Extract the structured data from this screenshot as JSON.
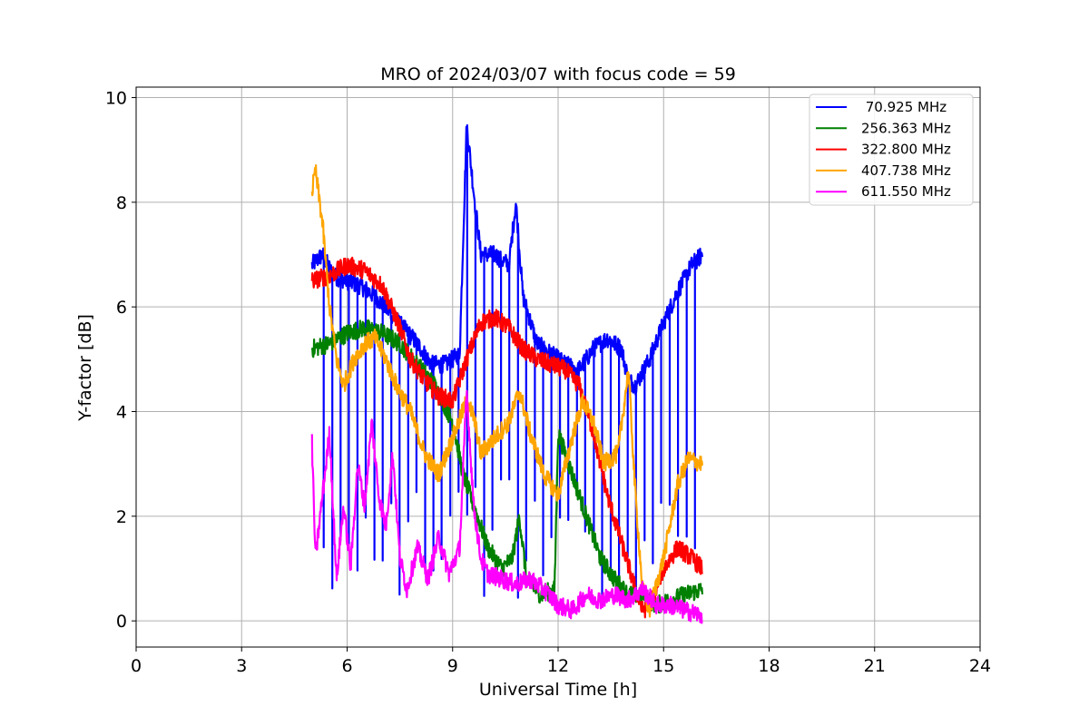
{
  "chart_data": {
    "type": "line",
    "title": "MRO of 2024/03/07 with focus code = 59",
    "xlabel": "Universal Time [h]",
    "ylabel": "Y-factor [dB]",
    "xlim": [
      0,
      24
    ],
    "ylim": [
      -0.5,
      10.2
    ],
    "xticks": [
      0,
      3,
      6,
      9,
      12,
      15,
      18,
      21,
      24
    ],
    "yticks": [
      0,
      2,
      4,
      6,
      8,
      10
    ],
    "grid": true,
    "legend_position": "top-right",
    "series": [
      {
        "name": " 70.925 MHz",
        "color": "#0000ff",
        "x": [
          5.0,
          5.3,
          5.6,
          6.0,
          6.4,
          6.8,
          7.2,
          7.6,
          8.0,
          8.4,
          8.8,
          9.2,
          9.4,
          9.6,
          9.8,
          10.2,
          10.6,
          10.8,
          11.0,
          11.4,
          11.8,
          12.2,
          12.6,
          13.0,
          13.4,
          13.8,
          14.0,
          14.2,
          14.6,
          15.0,
          15.4,
          15.8,
          16.1
        ],
        "y": [
          6.8,
          7.0,
          6.6,
          6.5,
          6.4,
          6.2,
          5.9,
          5.6,
          5.3,
          4.9,
          4.9,
          5.1,
          9.5,
          8.2,
          7.0,
          7.0,
          6.8,
          8.0,
          6.2,
          5.3,
          5.1,
          4.9,
          4.8,
          5.2,
          5.4,
          5.2,
          4.6,
          4.5,
          5.0,
          5.7,
          6.3,
          6.8,
          7.0
        ],
        "dips": {
          "period_h": 0.24,
          "start_h": 5.1,
          "end_h": 16.1,
          "min_db": 0.4
        }
      },
      {
        "name": "256.363 MHz",
        "color": "#008000",
        "x": [
          5.0,
          5.5,
          6.0,
          6.5,
          7.0,
          7.5,
          8.0,
          8.5,
          9.0,
          9.3,
          9.7,
          10.0,
          10.4,
          10.7,
          10.9,
          11.1,
          11.5,
          11.9,
          12.0,
          12.4,
          12.8,
          13.2,
          13.6,
          14.0,
          14.4,
          14.8,
          15.2,
          15.6,
          16.1
        ],
        "y": [
          5.2,
          5.3,
          5.5,
          5.6,
          5.5,
          5.3,
          4.9,
          4.5,
          3.8,
          2.8,
          2.0,
          1.4,
          1.0,
          1.2,
          2.0,
          0.8,
          0.5,
          0.6,
          3.6,
          2.8,
          2.0,
          1.2,
          0.8,
          0.5,
          0.5,
          0.3,
          0.4,
          0.5,
          0.6
        ]
      },
      {
        "name": "322.800 MHz",
        "color": "#ff0000",
        "x": [
          5.0,
          5.5,
          6.0,
          6.5,
          7.0,
          7.5,
          7.8,
          8.2,
          8.6,
          9.0,
          9.4,
          9.8,
          10.2,
          10.6,
          11.0,
          11.4,
          11.8,
          12.2,
          12.6,
          13.0,
          13.4,
          13.8,
          14.2,
          14.4,
          14.6,
          15.0,
          15.4,
          15.8,
          16.1
        ],
        "y": [
          6.5,
          6.6,
          6.8,
          6.7,
          6.4,
          5.6,
          5.0,
          4.6,
          4.3,
          4.2,
          5.0,
          5.7,
          5.8,
          5.6,
          5.2,
          5.0,
          4.9,
          4.8,
          4.5,
          3.6,
          2.4,
          1.5,
          0.6,
          0.2,
          0.3,
          1.0,
          1.4,
          1.2,
          1.0
        ]
      },
      {
        "name": "407.738 MHz",
        "color": "#ffa500",
        "x": [
          5.0,
          5.1,
          5.3,
          5.5,
          5.7,
          5.9,
          6.2,
          6.5,
          6.8,
          7.1,
          7.4,
          7.8,
          8.2,
          8.6,
          9.0,
          9.4,
          9.6,
          9.8,
          10.2,
          10.6,
          10.9,
          11.2,
          11.6,
          12.0,
          12.4,
          12.7,
          13.0,
          13.3,
          13.7,
          14.0,
          14.2,
          14.4,
          14.6,
          15.0,
          15.4,
          15.7,
          16.1
        ],
        "y": [
          8.2,
          8.6,
          7.6,
          6.0,
          5.0,
          4.5,
          5.0,
          5.3,
          5.4,
          5.0,
          4.5,
          4.0,
          3.2,
          2.8,
          3.5,
          4.2,
          3.9,
          3.2,
          3.5,
          3.8,
          4.4,
          3.6,
          2.8,
          2.4,
          3.5,
          4.2,
          3.8,
          3.0,
          3.2,
          4.8,
          2.4,
          0.6,
          0.2,
          1.2,
          2.6,
          3.1,
          3.0
        ]
      },
      {
        "name": "611.550 MHz",
        "color": "#ff00ff",
        "x": [
          5.0,
          5.1,
          5.3,
          5.5,
          5.7,
          5.9,
          6.1,
          6.3,
          6.5,
          6.7,
          6.9,
          7.1,
          7.3,
          7.5,
          7.7,
          8.0,
          8.3,
          8.6,
          8.9,
          9.2,
          9.4,
          9.6,
          9.8,
          10.0,
          10.4,
          10.8,
          11.2,
          11.6,
          12.0,
          12.4,
          12.8,
          13.2,
          13.6,
          14.0,
          14.4,
          14.8,
          15.2,
          15.6,
          16.1
        ],
        "y": [
          3.4,
          1.2,
          2.4,
          3.6,
          0.8,
          2.2,
          1.0,
          3.0,
          2.2,
          3.8,
          2.4,
          1.8,
          3.2,
          1.2,
          0.6,
          1.4,
          0.8,
          1.6,
          0.9,
          1.4,
          4.4,
          2.2,
          1.2,
          0.9,
          0.8,
          0.7,
          0.8,
          0.6,
          0.3,
          0.2,
          0.5,
          0.4,
          0.5,
          0.4,
          0.6,
          0.3,
          0.3,
          0.2,
          0.1
        ]
      }
    ]
  }
}
